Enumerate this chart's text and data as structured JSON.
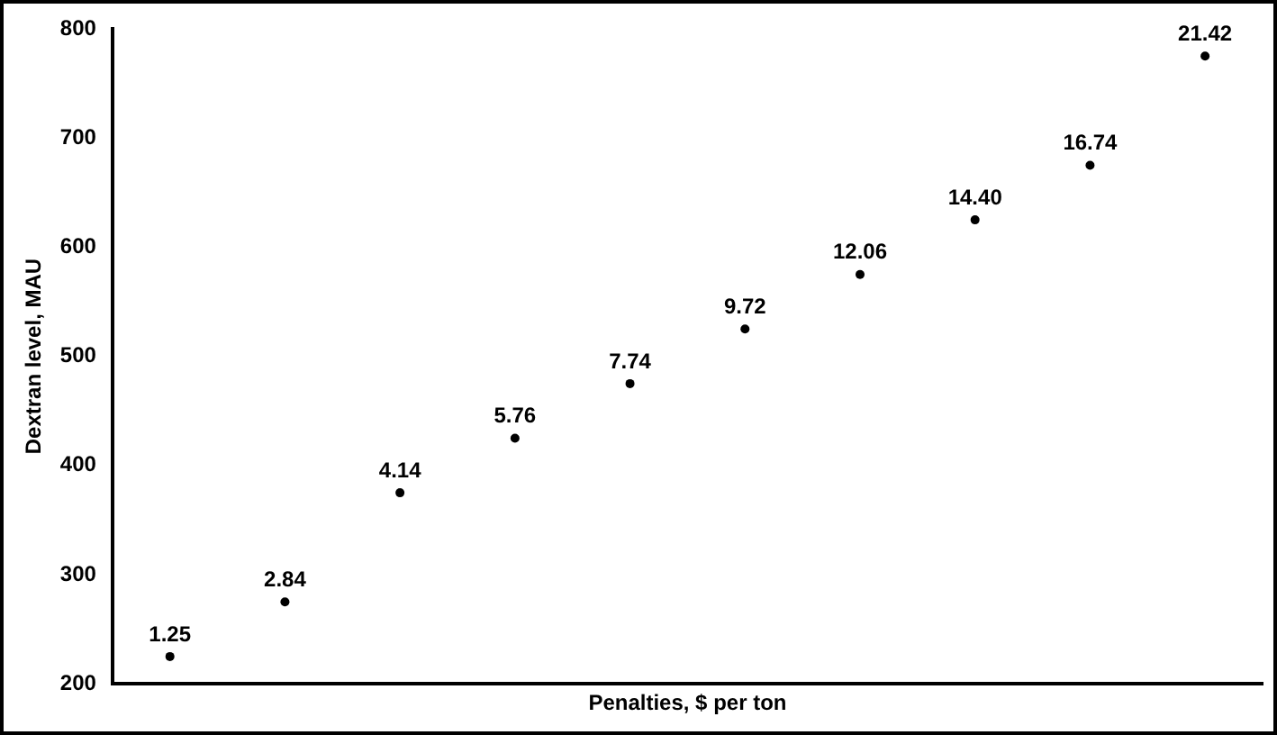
{
  "chart_data": {
    "type": "scatter",
    "xlabel": "Penalties, $ per ton",
    "ylabel": "Dextran level, MAU",
    "categories": [
      null,
      null,
      null,
      null,
      null,
      null,
      null,
      null,
      null,
      null
    ],
    "series": [
      {
        "color": "#000000",
        "values": [
          225,
          275,
          375,
          425,
          475,
          525,
          575,
          625,
          675,
          775
        ]
      }
    ],
    "annotations": [
      {
        "text": "1.25",
        "y": 225
      },
      {
        "text": "2.84",
        "y": 275
      },
      {
        "text": "4.14",
        "y": 375
      },
      {
        "text": "5.76",
        "y": 425
      },
      {
        "text": "7.74",
        "y": 475
      },
      {
        "text": "9.72",
        "y": 525
      },
      {
        "text": "12.06",
        "y": 575
      },
      {
        "text": "14.40",
        "y": 625
      },
      {
        "text": "16.74",
        "y": 675
      },
      {
        "text": "21.42",
        "y": 775
      }
    ],
    "ylim": [
      200,
      800
    ],
    "yticks": [
      200,
      300,
      400,
      500,
      600,
      700,
      800
    ],
    "grid": false,
    "legend": false,
    "marker": "circle",
    "tick_labels": "y"
  }
}
